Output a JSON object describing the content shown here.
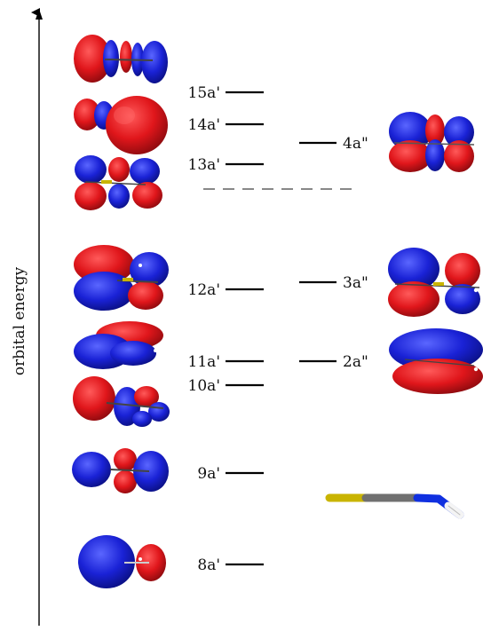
{
  "axis": {
    "label": "orbital energy"
  },
  "levels_a_prime": [
    {
      "label": "15a'"
    },
    {
      "label": "14a'"
    },
    {
      "label": "13a'"
    },
    {
      "label": "12a'"
    },
    {
      "label": "11a'"
    },
    {
      "label": "10a'"
    },
    {
      "label": "9a'"
    },
    {
      "label": "8a'"
    }
  ],
  "levels_a_double_prime": [
    {
      "label": "4a\""
    },
    {
      "label": "3a\""
    },
    {
      "label": "2a\""
    }
  ],
  "colors": {
    "positive_lobe": "#e0161b",
    "negative_lobe": "#1a22d6",
    "carbon": "#707070",
    "sulfur": "#c9b400",
    "nitrogen": "#1030e0",
    "hydrogen": "#ffffff",
    "divider": "#888888"
  }
}
